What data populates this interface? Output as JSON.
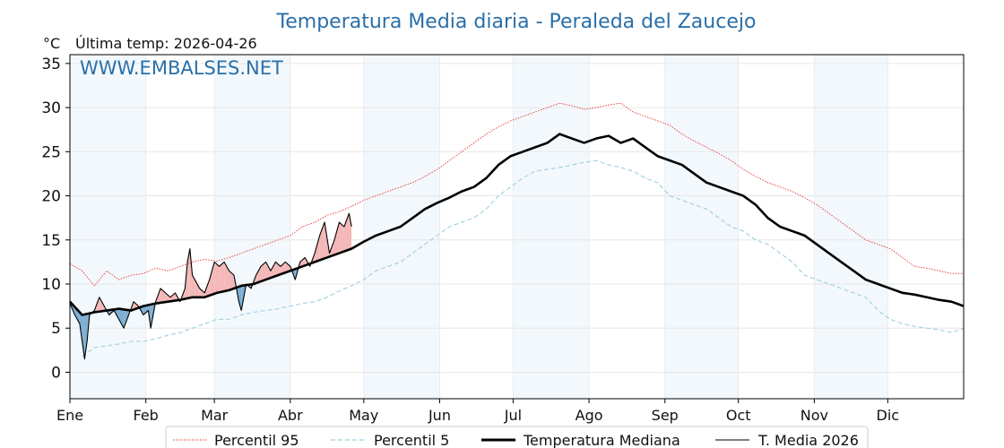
{
  "chart_data": {
    "type": "line",
    "title": "Temperatura Media diaria - Peraleda del Zaucejo",
    "unit_label": "°C",
    "last_temp_label": "Última temp: 2026-04-26",
    "watermark": "WWW.EMBALSES.NET",
    "ylim": [
      -3,
      36
    ],
    "yticks": [
      0,
      5,
      10,
      15,
      20,
      25,
      30,
      35
    ],
    "x_domain_days": [
      0,
      365
    ],
    "months": [
      {
        "label": "Ene",
        "day": 0
      },
      {
        "label": "Feb",
        "day": 31
      },
      {
        "label": "Mar",
        "day": 59
      },
      {
        "label": "Abr",
        "day": 90
      },
      {
        "label": "May",
        "day": 120
      },
      {
        "label": "Jun",
        "day": 151
      },
      {
        "label": "Jul",
        "day": 181
      },
      {
        "label": "Ago",
        "day": 212
      },
      {
        "label": "Sep",
        "day": 243
      },
      {
        "label": "Oct",
        "day": 273
      },
      {
        "label": "Nov",
        "day": 304
      },
      {
        "label": "Dic",
        "day": 334
      }
    ],
    "shaded_months": [
      "Ene",
      "Mar",
      "May",
      "Jul",
      "Sep",
      "Nov"
    ],
    "series": [
      {
        "name": "Percentil 95",
        "color": "#e8302a",
        "style": "dotted",
        "points": [
          [
            0,
            12.3
          ],
          [
            5,
            11.5
          ],
          [
            10,
            9.8
          ],
          [
            15,
            11.5
          ],
          [
            20,
            10.5
          ],
          [
            25,
            11.0
          ],
          [
            30,
            11.2
          ],
          [
            35,
            11.8
          ],
          [
            40,
            11.5
          ],
          [
            45,
            12.0
          ],
          [
            50,
            12.5
          ],
          [
            55,
            12.8
          ],
          [
            60,
            12.6
          ],
          [
            65,
            13.0
          ],
          [
            70,
            13.5
          ],
          [
            75,
            14.0
          ],
          [
            80,
            14.5
          ],
          [
            85,
            15.0
          ],
          [
            90,
            15.5
          ],
          [
            95,
            16.5
          ],
          [
            100,
            17.0
          ],
          [
            105,
            17.8
          ],
          [
            110,
            18.2
          ],
          [
            115,
            18.8
          ],
          [
            120,
            19.5
          ],
          [
            125,
            20.0
          ],
          [
            130,
            20.5
          ],
          [
            135,
            21.0
          ],
          [
            140,
            21.5
          ],
          [
            145,
            22.2
          ],
          [
            150,
            23.0
          ],
          [
            155,
            24.0
          ],
          [
            160,
            25.0
          ],
          [
            165,
            26.0
          ],
          [
            170,
            27.0
          ],
          [
            175,
            27.8
          ],
          [
            180,
            28.5
          ],
          [
            185,
            29.0
          ],
          [
            190,
            29.5
          ],
          [
            195,
            30.0
          ],
          [
            200,
            30.5
          ],
          [
            205,
            30.2
          ],
          [
            210,
            29.8
          ],
          [
            215,
            30.0
          ],
          [
            220,
            30.3
          ],
          [
            225,
            30.5
          ],
          [
            230,
            29.5
          ],
          [
            235,
            29.0
          ],
          [
            240,
            28.5
          ],
          [
            245,
            28.0
          ],
          [
            250,
            27.0
          ],
          [
            255,
            26.2
          ],
          [
            260,
            25.5
          ],
          [
            265,
            24.8
          ],
          [
            270,
            24.0
          ],
          [
            275,
            23.0
          ],
          [
            280,
            22.2
          ],
          [
            285,
            21.5
          ],
          [
            290,
            21.0
          ],
          [
            295,
            20.5
          ],
          [
            300,
            19.8
          ],
          [
            305,
            19.0
          ],
          [
            310,
            18.0
          ],
          [
            315,
            17.0
          ],
          [
            320,
            16.0
          ],
          [
            325,
            15.0
          ],
          [
            330,
            14.5
          ],
          [
            335,
            14.0
          ],
          [
            340,
            13.0
          ],
          [
            345,
            12.0
          ],
          [
            350,
            11.8
          ],
          [
            355,
            11.5
          ],
          [
            360,
            11.2
          ],
          [
            365,
            11.2
          ]
        ]
      },
      {
        "name": "Percentil 5",
        "color": "#9ecfe0",
        "style": "dashed",
        "points": [
          [
            5,
            1.8
          ],
          [
            10,
            2.8
          ],
          [
            15,
            3.0
          ],
          [
            20,
            3.2
          ],
          [
            25,
            3.5
          ],
          [
            30,
            3.5
          ],
          [
            35,
            3.8
          ],
          [
            40,
            4.2
          ],
          [
            45,
            4.5
          ],
          [
            50,
            5.0
          ],
          [
            55,
            5.5
          ],
          [
            60,
            6.0
          ],
          [
            65,
            6.0
          ],
          [
            70,
            6.5
          ],
          [
            75,
            6.8
          ],
          [
            80,
            7.0
          ],
          [
            85,
            7.2
          ],
          [
            90,
            7.5
          ],
          [
            95,
            7.8
          ],
          [
            100,
            8.0
          ],
          [
            105,
            8.5
          ],
          [
            110,
            9.2
          ],
          [
            115,
            9.8
          ],
          [
            120,
            10.5
          ],
          [
            125,
            11.5
          ],
          [
            130,
            12.0
          ],
          [
            135,
            12.5
          ],
          [
            140,
            13.5
          ],
          [
            145,
            14.5
          ],
          [
            150,
            15.5
          ],
          [
            155,
            16.5
          ],
          [
            160,
            17.0
          ],
          [
            165,
            17.5
          ],
          [
            170,
            18.5
          ],
          [
            175,
            20.0
          ],
          [
            180,
            21.0
          ],
          [
            185,
            22.0
          ],
          [
            190,
            22.8
          ],
          [
            195,
            23.0
          ],
          [
            200,
            23.2
          ],
          [
            205,
            23.5
          ],
          [
            210,
            23.8
          ],
          [
            215,
            24.0
          ],
          [
            220,
            23.5
          ],
          [
            225,
            23.2
          ],
          [
            230,
            22.8
          ],
          [
            235,
            22.0
          ],
          [
            240,
            21.5
          ],
          [
            245,
            20.0
          ],
          [
            250,
            19.5
          ],
          [
            255,
            19.0
          ],
          [
            260,
            18.5
          ],
          [
            265,
            17.5
          ],
          [
            270,
            16.5
          ],
          [
            275,
            16.0
          ],
          [
            280,
            15.0
          ],
          [
            285,
            14.5
          ],
          [
            290,
            13.5
          ],
          [
            295,
            12.5
          ],
          [
            300,
            11.0
          ],
          [
            305,
            10.5
          ],
          [
            310,
            10.0
          ],
          [
            315,
            9.5
          ],
          [
            320,
            9.0
          ],
          [
            325,
            8.5
          ],
          [
            330,
            7.0
          ],
          [
            335,
            6.0
          ],
          [
            340,
            5.5
          ],
          [
            345,
            5.2
          ],
          [
            350,
            5.0
          ],
          [
            355,
            4.8
          ],
          [
            360,
            4.5
          ],
          [
            365,
            5.0
          ]
        ]
      },
      {
        "name": "Temperatura Mediana",
        "color": "#000000",
        "style": "thick",
        "points": [
          [
            0,
            8.0
          ],
          [
            5,
            6.5
          ],
          [
            10,
            6.8
          ],
          [
            15,
            7.0
          ],
          [
            20,
            7.2
          ],
          [
            25,
            7.0
          ],
          [
            30,
            7.5
          ],
          [
            35,
            7.8
          ],
          [
            40,
            8.0
          ],
          [
            45,
            8.2
          ],
          [
            50,
            8.5
          ],
          [
            55,
            8.5
          ],
          [
            60,
            9.0
          ],
          [
            65,
            9.3
          ],
          [
            70,
            9.8
          ],
          [
            75,
            10.0
          ],
          [
            80,
            10.5
          ],
          [
            85,
            11.0
          ],
          [
            90,
            11.5
          ],
          [
            95,
            12.0
          ],
          [
            100,
            12.5
          ],
          [
            105,
            13.0
          ],
          [
            110,
            13.5
          ],
          [
            115,
            14.0
          ],
          [
            120,
            14.8
          ],
          [
            125,
            15.5
          ],
          [
            130,
            16.0
          ],
          [
            135,
            16.5
          ],
          [
            140,
            17.5
          ],
          [
            145,
            18.5
          ],
          [
            150,
            19.2
          ],
          [
            155,
            19.8
          ],
          [
            160,
            20.5
          ],
          [
            165,
            21.0
          ],
          [
            170,
            22.0
          ],
          [
            175,
            23.5
          ],
          [
            180,
            24.5
          ],
          [
            185,
            25.0
          ],
          [
            190,
            25.5
          ],
          [
            195,
            26.0
          ],
          [
            200,
            27.0
          ],
          [
            205,
            26.5
          ],
          [
            210,
            26.0
          ],
          [
            215,
            26.5
          ],
          [
            220,
            26.8
          ],
          [
            225,
            26.0
          ],
          [
            230,
            26.5
          ],
          [
            235,
            25.5
          ],
          [
            240,
            24.5
          ],
          [
            245,
            24.0
          ],
          [
            250,
            23.5
          ],
          [
            255,
            22.5
          ],
          [
            260,
            21.5
          ],
          [
            265,
            21.0
          ],
          [
            270,
            20.5
          ],
          [
            275,
            20.0
          ],
          [
            280,
            19.0
          ],
          [
            285,
            17.5
          ],
          [
            290,
            16.5
          ],
          [
            295,
            16.0
          ],
          [
            300,
            15.5
          ],
          [
            305,
            14.5
          ],
          [
            310,
            13.5
          ],
          [
            315,
            12.5
          ],
          [
            320,
            11.5
          ],
          [
            325,
            10.5
          ],
          [
            330,
            10.0
          ],
          [
            335,
            9.5
          ],
          [
            340,
            9.0
          ],
          [
            345,
            8.8
          ],
          [
            350,
            8.5
          ],
          [
            355,
            8.2
          ],
          [
            360,
            8.0
          ],
          [
            365,
            7.5
          ]
        ]
      },
      {
        "name": "T. Media 2026",
        "color": "#000000",
        "style": "thin",
        "points": [
          [
            0,
            7.8
          ],
          [
            2,
            6.5
          ],
          [
            4,
            5.5
          ],
          [
            5,
            3.5
          ],
          [
            6,
            1.5
          ],
          [
            7,
            3.5
          ],
          [
            8,
            6.5
          ],
          [
            10,
            7.0
          ],
          [
            12,
            8.5
          ],
          [
            14,
            7.5
          ],
          [
            16,
            6.5
          ],
          [
            18,
            7.0
          ],
          [
            20,
            6.0
          ],
          [
            22,
            5.0
          ],
          [
            24,
            6.5
          ],
          [
            26,
            8.0
          ],
          [
            28,
            7.5
          ],
          [
            30,
            6.5
          ],
          [
            32,
            7.0
          ],
          [
            33,
            5.0
          ],
          [
            35,
            8.0
          ],
          [
            37,
            9.5
          ],
          [
            39,
            9.0
          ],
          [
            41,
            8.5
          ],
          [
            43,
            9.0
          ],
          [
            45,
            8.0
          ],
          [
            47,
            9.5
          ],
          [
            48,
            12.5
          ],
          [
            49,
            14.0
          ],
          [
            50,
            11.0
          ],
          [
            51,
            10.5
          ],
          [
            53,
            9.5
          ],
          [
            55,
            9.0
          ],
          [
            57,
            10.5
          ],
          [
            59,
            12.5
          ],
          [
            61,
            12.0
          ],
          [
            63,
            12.5
          ],
          [
            65,
            11.5
          ],
          [
            67,
            11.0
          ],
          [
            69,
            8.0
          ],
          [
            70,
            7.0
          ],
          [
            71,
            8.5
          ],
          [
            72,
            10.0
          ],
          [
            74,
            9.5
          ],
          [
            76,
            11.0
          ],
          [
            78,
            12.0
          ],
          [
            80,
            12.5
          ],
          [
            82,
            11.5
          ],
          [
            84,
            12.5
          ],
          [
            86,
            12.0
          ],
          [
            88,
            12.5
          ],
          [
            90,
            12.0
          ],
          [
            92,
            10.5
          ],
          [
            94,
            12.5
          ],
          [
            96,
            13.0
          ],
          [
            98,
            12.0
          ],
          [
            100,
            13.5
          ],
          [
            102,
            15.5
          ],
          [
            104,
            17.0
          ],
          [
            106,
            13.5
          ],
          [
            108,
            15.0
          ],
          [
            110,
            17.0
          ],
          [
            112,
            16.5
          ],
          [
            114,
            18.0
          ],
          [
            115,
            16.5
          ]
        ]
      }
    ],
    "legend": {
      "position": "bottom-center",
      "entries": [
        "Percentil 95",
        "Percentil 5",
        "Temperatura Mediana",
        "T. Media 2026"
      ]
    }
  }
}
